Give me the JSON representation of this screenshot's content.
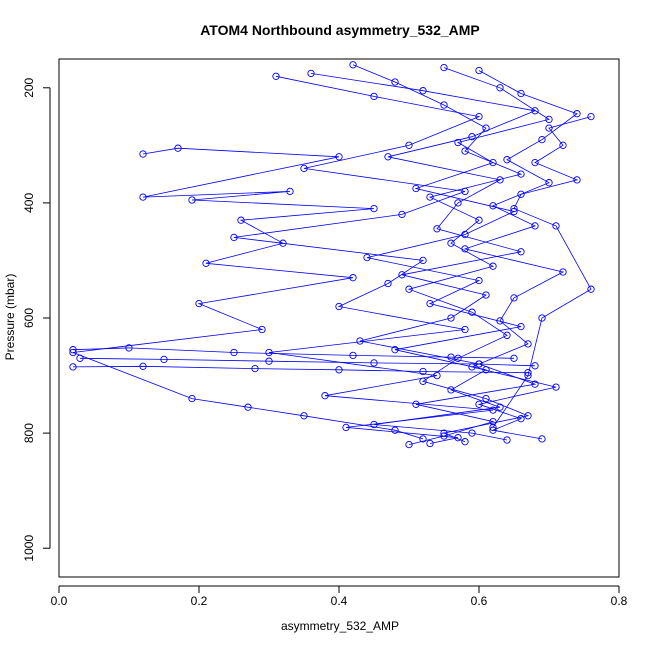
{
  "chart_data": {
    "type": "scatter",
    "title": "ATOM4 Northbound asymmetry_532_AMP",
    "xlabel": "asymmetry_532_AMP",
    "ylabel": "Pressure (mbar)",
    "xlim": [
      0.0,
      0.8
    ],
    "ylim": [
      150,
      1050
    ],
    "y_reversed": true,
    "x_ticks": [
      0.0,
      0.2,
      0.4,
      0.6,
      0.8
    ],
    "x_tick_labels": [
      "0.0",
      "0.2",
      "0.4",
      "0.6",
      "0.8"
    ],
    "y_ticks": [
      200,
      400,
      600,
      800,
      1000
    ],
    "y_tick_labels": [
      "200",
      "400",
      "600",
      "800",
      "1000"
    ],
    "marker": "open-circle",
    "connected_lines": true,
    "series_color": "#0000ff",
    "grid": false,
    "profiles": [
      {
        "x": [
          0.42,
          0.48,
          0.55,
          0.61,
          0.58,
          0.66,
          0.53,
          0.6,
          0.56,
          0.62,
          0.5,
          0.59,
          0.64,
          0.57,
          0.52,
          0.61,
          0.67,
          0.55,
          0.58
        ],
        "y": [
          160,
          190,
          230,
          270,
          310,
          350,
          390,
          430,
          470,
          510,
          550,
          590,
          630,
          670,
          710,
          740,
          770,
          800,
          815
        ]
      },
      {
        "x": [
          0.36,
          0.52,
          0.68,
          0.59,
          0.47,
          0.63,
          0.57,
          0.54,
          0.66,
          0.49,
          0.61,
          0.56,
          0.43,
          0.6,
          0.68,
          0.51,
          0.62,
          0.55,
          0.5
        ],
        "y": [
          175,
          205,
          240,
          285,
          320,
          360,
          400,
          445,
          485,
          525,
          560,
          600,
          640,
          680,
          715,
          750,
          780,
          805,
          820
        ]
      },
      {
        "x": [
          0.55,
          0.63,
          0.7,
          0.57,
          0.62,
          0.51,
          0.65,
          0.58,
          0.44,
          0.6,
          0.53,
          0.66,
          0.48,
          0.61,
          0.56,
          0.63,
          0.45,
          0.59,
          0.64
        ],
        "y": [
          165,
          200,
          255,
          295,
          330,
          375,
          415,
          455,
          495,
          535,
          575,
          615,
          655,
          690,
          725,
          755,
          785,
          800,
          812
        ]
      },
      {
        "x": [
          0.31,
          0.45,
          0.6,
          0.5,
          0.35,
          0.58,
          0.49,
          0.25,
          0.52,
          0.47,
          0.4,
          0.58,
          0.3,
          0.54,
          0.38,
          0.62,
          0.41,
          0.57,
          0.53
        ],
        "y": [
          180,
          215,
          250,
          300,
          340,
          380,
          420,
          460,
          500,
          540,
          580,
          620,
          660,
          700,
          735,
          760,
          790,
          808,
          818
        ]
      },
      {
        "x": [
          0.6,
          0.66,
          0.74,
          0.69,
          0.64,
          0.7,
          0.62,
          0.68,
          0.58,
          0.72,
          0.65,
          0.63,
          0.67,
          0.59,
          0.71,
          0.6,
          0.66,
          0.62,
          0.69
        ],
        "y": [
          170,
          210,
          245,
          290,
          325,
          365,
          405,
          440,
          480,
          520,
          565,
          605,
          645,
          685,
          720,
          750,
          775,
          795,
          810
        ]
      },
      {
        "x": [
          0.12,
          0.17,
          0.4,
          0.12,
          0.33,
          0.19,
          0.45,
          0.26,
          0.32,
          0.21,
          0.42,
          0.2,
          0.29,
          0.02,
          0.19,
          0.27,
          0.35,
          0.48,
          0.52
        ],
        "y": [
          315,
          305,
          320,
          390,
          380,
          395,
          410,
          430,
          470,
          505,
          530,
          575,
          620,
          660,
          740,
          755,
          770,
          795,
          810
        ]
      },
      {
        "x": [
          0.02,
          0.1,
          0.25,
          0.42,
          0.56,
          0.65
        ],
        "y": [
          655,
          652,
          660,
          665,
          668,
          670
        ]
      },
      {
        "x": [
          0.03,
          0.15,
          0.3,
          0.45,
          0.6,
          0.68
        ],
        "y": [
          670,
          672,
          675,
          678,
          680,
          683
        ]
      },
      {
        "x": [
          0.02,
          0.12,
          0.28,
          0.4,
          0.52,
          0.67
        ],
        "y": [
          685,
          684,
          688,
          690,
          693,
          695
        ]
      },
      {
        "x": [
          0.76,
          0.7,
          0.72,
          0.68,
          0.74,
          0.66,
          0.65,
          0.71,
          0.76,
          0.69,
          0.67,
          0.62
        ],
        "y": [
          250,
          270,
          300,
          330,
          360,
          385,
          410,
          440,
          550,
          600,
          700,
          790
        ]
      }
    ]
  }
}
